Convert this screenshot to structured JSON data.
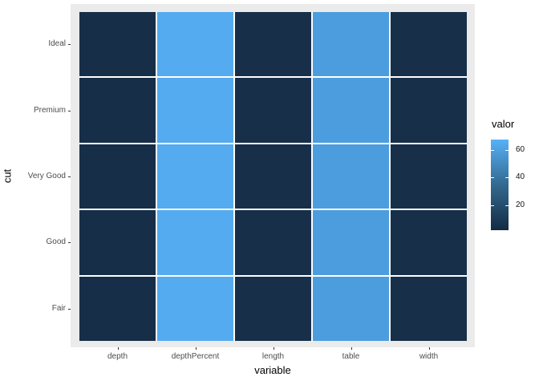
{
  "figure": {
    "background": "#FFFFFF",
    "panel_bg": "#EBEBEB",
    "tile_gap_color": "#FFFFFF",
    "axis_text_color": "#4D4D4D",
    "axis_title_color": "#000000",
    "tick_mark_color": "#333333"
  },
  "chart_data": {
    "type": "heatmap",
    "title": "",
    "xlabel": "variable",
    "ylabel": "cut",
    "columns": [
      "depth",
      "depthPercent",
      "length",
      "table",
      "width"
    ],
    "rows": [
      "Ideal",
      "Premium",
      "Very Good",
      "Good",
      "Fair"
    ],
    "series": [
      {
        "name": "Ideal",
        "values": [
          4,
          62,
          6,
          57,
          6
        ]
      },
      {
        "name": "Premium",
        "values": [
          4,
          62,
          6,
          57,
          6
        ]
      },
      {
        "name": "Very Good",
        "values": [
          4,
          62,
          6,
          57,
          6
        ]
      },
      {
        "name": "Good",
        "values": [
          4,
          62,
          6,
          57,
          6
        ]
      },
      {
        "name": "Fair",
        "values": [
          4,
          62,
          6,
          57,
          6
        ]
      }
    ],
    "column_colors": {
      "depth": "#162E47",
      "depthPercent": "#55ABF0",
      "length": "#172F49",
      "table": "#4C9DDE",
      "width": "#172F49"
    },
    "legend": {
      "title": "valor",
      "ticks": [
        60,
        40,
        20
      ],
      "limits": [
        2,
        67.5
      ],
      "low_color": "#132B43",
      "mid_color": "#336990",
      "high_color": "#56B1F7",
      "position": "right",
      "grid": false
    }
  }
}
